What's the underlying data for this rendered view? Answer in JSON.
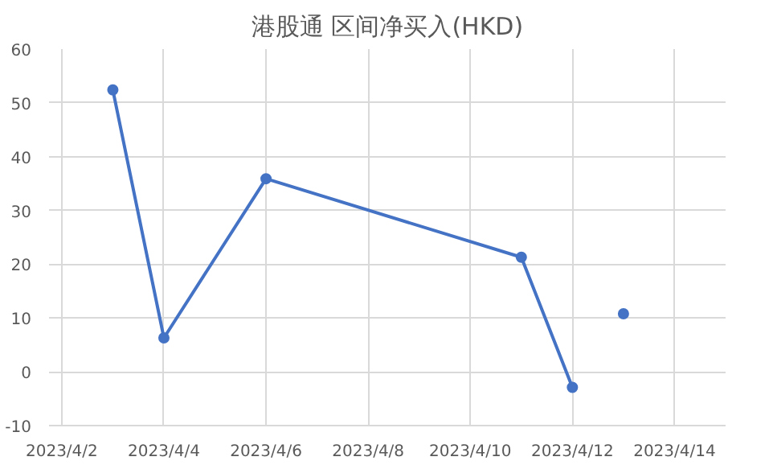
{
  "chart_data": {
    "type": "line",
    "title": "港股通 区间净买入(HKD)",
    "x": [
      "2023-04-03",
      "2023-04-04",
      "2023-04-06",
      "2023-04-11",
      "2023-04-12",
      "2023-04-12T12:00",
      "2023-04-13"
    ],
    "series": [
      {
        "color": "#4472c4",
        "values": [
          52.4,
          6.3,
          35.9,
          21.3,
          -2.9,
          null,
          10.8
        ]
      }
    ],
    "xlim": [
      "2023-04-01T18:00",
      "2023-04-15"
    ],
    "xticks": [
      {
        "value": "2023-04-02",
        "label": "2023/4/2"
      },
      {
        "value": "2023-04-04",
        "label": "2023/4/4"
      },
      {
        "value": "2023-04-06",
        "label": "2023/4/6"
      },
      {
        "value": "2023-04-08",
        "label": "2023/4/8"
      },
      {
        "value": "2023-04-10",
        "label": "2023/4/10"
      },
      {
        "value": "2023-04-12",
        "label": "2023/4/12"
      },
      {
        "value": "2023-04-14",
        "label": "2023/4/14"
      }
    ],
    "ylim": [
      -10,
      60
    ],
    "yticks": [
      -10,
      0,
      10,
      20,
      30,
      40,
      50,
      60
    ],
    "grid": true,
    "marker": "circle",
    "line_style": "solid"
  }
}
